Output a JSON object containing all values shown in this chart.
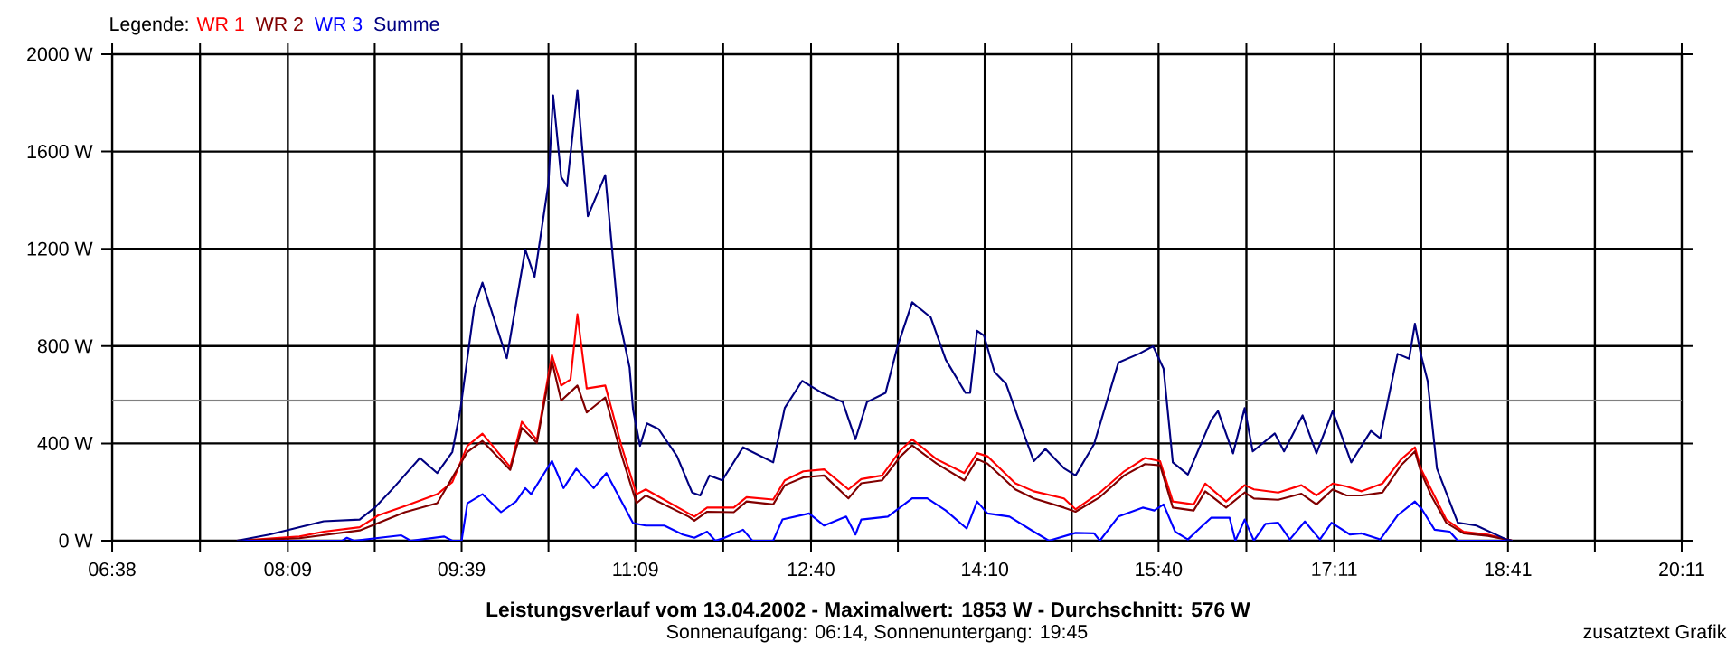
{
  "chart_data": {
    "type": "line",
    "title": "Leistungsverlauf vom 13.04.2002 - Maximalwert: 1853 W - Durchschnitt: 576 W",
    "subtitle": "Sonnenaufgang: 06:14, Sonnenuntergang: 19:45",
    "legend_title": "Legende:",
    "annotations": [
      "zusatztext Grafik"
    ],
    "legend": "top left",
    "grid": true,
    "marker": "none",
    "xlim": [
      6.6333,
      20.1833
    ],
    "xticks": [
      {
        "value": 6.6333,
        "label": "06:38"
      },
      {
        "value": 7.3917,
        "label": null
      },
      {
        "value": 8.15,
        "label": "08:09"
      },
      {
        "value": 8.9,
        "label": null
      },
      {
        "value": 9.65,
        "label": "09:39"
      },
      {
        "value": 10.4,
        "label": null
      },
      {
        "value": 11.15,
        "label": "11:09"
      },
      {
        "value": 11.9083,
        "label": null
      },
      {
        "value": 12.6667,
        "label": "12:40"
      },
      {
        "value": 13.4167,
        "label": null
      },
      {
        "value": 14.1667,
        "label": "14:10"
      },
      {
        "value": 14.9167,
        "label": null
      },
      {
        "value": 15.6667,
        "label": "15:40"
      },
      {
        "value": 16.425,
        "label": null
      },
      {
        "value": 17.1833,
        "label": "17:11"
      },
      {
        "value": 17.9333,
        "label": null
      },
      {
        "value": 18.6833,
        "label": "18:41"
      },
      {
        "value": 19.4333,
        "label": null
      },
      {
        "value": 20.1833,
        "label": "20:11"
      }
    ],
    "ylim": [
      0,
      2000
    ],
    "yticks": [
      {
        "value": 0,
        "label": "0 W"
      },
      {
        "value": 400,
        "label": "400 W"
      },
      {
        "value": 800,
        "label": "800 W"
      },
      {
        "value": 1200,
        "label": "1200 W"
      },
      {
        "value": 1600,
        "label": "1600 W"
      },
      {
        "value": 2000,
        "label": "2000 W"
      }
    ],
    "ref_lines": [
      {
        "axis": "y",
        "value": 576,
        "color": "#808080"
      }
    ],
    "series": [
      {
        "name": "WR 1",
        "color": "#ff0000",
        "x": [
          7.71,
          8.25,
          8.46,
          8.77,
          8.93,
          9.16,
          9.44,
          9.57,
          9.7,
          9.83,
          10.07,
          10.17,
          10.3,
          10.43,
          10.51,
          10.59,
          10.65,
          10.73,
          10.89,
          11.03,
          11.16,
          11.24,
          11.61,
          11.66,
          11.77,
          12.0,
          12.11,
          12.34,
          12.44,
          12.6,
          12.78,
          12.99,
          13.1,
          13.28,
          13.44,
          13.54,
          13.75,
          13.99,
          14.1,
          14.19,
          14.43,
          14.59,
          14.85,
          14.95,
          15.16,
          15.37,
          15.55,
          15.68,
          15.79,
          15.97,
          16.07,
          16.25,
          16.41,
          16.49,
          16.7,
          16.9,
          17.03,
          17.17,
          17.29,
          17.42,
          17.6,
          17.76,
          17.88,
          17.93,
          18.02,
          18.15,
          18.3,
          18.51,
          18.72
        ],
        "values": [
          0,
          17,
          37,
          55,
          104,
          142,
          191,
          241,
          390,
          440,
          303,
          489,
          415,
          763,
          638,
          663,
          931,
          626,
          638,
          390,
          191,
          211,
          112,
          99,
          136,
          136,
          179,
          169,
          248,
          285,
          293,
          211,
          253,
          268,
          372,
          417,
          335,
          278,
          360,
          347,
          236,
          203,
          174,
          129,
          198,
          285,
          340,
          327,
          161,
          149,
          235,
          161,
          228,
          211,
          198,
          228,
          186,
          235,
          223,
          203,
          235,
          334,
          384,
          297,
          211,
          87,
          37,
          25,
          0
        ]
      },
      {
        "name": "WR 2",
        "color": "#800000",
        "x": [
          7.71,
          8.25,
          8.77,
          9.16,
          9.44,
          9.7,
          9.83,
          10.07,
          10.17,
          10.3,
          10.43,
          10.51,
          10.65,
          10.73,
          10.89,
          11.03,
          11.16,
          11.24,
          11.61,
          11.66,
          11.77,
          12.0,
          12.11,
          12.34,
          12.44,
          12.6,
          12.78,
          12.99,
          13.1,
          13.28,
          13.44,
          13.54,
          13.75,
          13.99,
          14.1,
          14.19,
          14.43,
          14.59,
          14.85,
          14.95,
          15.16,
          15.37,
          15.55,
          15.68,
          15.79,
          15.97,
          16.07,
          16.25,
          16.41,
          16.49,
          16.7,
          16.9,
          17.03,
          17.17,
          17.29,
          17.42,
          17.6,
          17.76,
          17.88,
          17.93,
          18.02,
          18.15,
          18.3,
          18.51,
          18.72
        ],
        "values": [
          0,
          10,
          42,
          117,
          154,
          365,
          410,
          291,
          464,
          402,
          738,
          576,
          638,
          527,
          589,
          353,
          154,
          186,
          99,
          82,
          119,
          117,
          161,
          149,
          228,
          260,
          268,
          174,
          236,
          248,
          347,
          392,
          317,
          248,
          335,
          317,
          211,
          174,
          136,
          119,
          179,
          268,
          315,
          310,
          136,
          124,
          203,
          136,
          198,
          173,
          168,
          193,
          149,
          211,
          186,
          186,
          198,
          310,
          367,
          285,
          186,
          74,
          30,
          20,
          0
        ]
      },
      {
        "name": "WR 3",
        "color": "#0000ff",
        "x": [
          7.71,
          8.62,
          8.66,
          8.72,
          9.13,
          9.21,
          9.5,
          9.57,
          9.65,
          9.7,
          9.83,
          9.99,
          10.12,
          10.2,
          10.25,
          10.43,
          10.53,
          10.64,
          10.79,
          10.9,
          11.13,
          11.24,
          11.4,
          11.56,
          11.66,
          11.77,
          11.84,
          11.92,
          12.08,
          12.16,
          12.34,
          12.42,
          12.65,
          12.78,
          12.97,
          13.05,
          13.1,
          13.33,
          13.54,
          13.67,
          13.83,
          14.01,
          14.1,
          14.19,
          14.38,
          14.59,
          14.72,
          14.95,
          15.11,
          15.16,
          15.32,
          15.53,
          15.63,
          15.71,
          15.81,
          15.92,
          16.02,
          16.12,
          16.28,
          16.33,
          16.41,
          16.49,
          16.59,
          16.7,
          16.8,
          16.93,
          17.06,
          17.16,
          17.32,
          17.42,
          17.58,
          17.73,
          17.88,
          17.94,
          18.05,
          18.18,
          18.25,
          18.72
        ],
        "values": [
          0,
          0,
          12,
          0,
          22,
          0,
          17,
          0,
          0,
          154,
          191,
          117,
          161,
          216,
          191,
          328,
          216,
          296,
          216,
          278,
          72,
          62,
          62,
          25,
          12,
          37,
          0,
          12,
          45,
          0,
          0,
          87,
          112,
          62,
          99,
          25,
          87,
          99,
          174,
          174,
          124,
          50,
          161,
          112,
          99,
          37,
          0,
          32,
          30,
          0,
          99,
          136,
          124,
          149,
          37,
          5,
          50,
          94,
          94,
          0,
          87,
          0,
          69,
          74,
          5,
          79,
          5,
          74,
          25,
          30,
          5,
          104,
          161,
          129,
          45,
          37,
          0,
          0
        ]
      },
      {
        "name": "Summe",
        "color": "#000080",
        "x": [
          7.71,
          7.99,
          8.46,
          8.77,
          8.91,
          9.06,
          9.29,
          9.44,
          9.57,
          9.64,
          9.76,
          9.83,
          10.04,
          10.2,
          10.28,
          10.4,
          10.44,
          10.51,
          10.56,
          10.65,
          10.74,
          10.89,
          11.0,
          11.1,
          11.13,
          11.19,
          11.25,
          11.35,
          11.51,
          11.64,
          11.71,
          11.79,
          11.9,
          12.08,
          12.34,
          12.44,
          12.59,
          12.76,
          12.94,
          13.05,
          13.15,
          13.31,
          13.41,
          13.54,
          13.7,
          13.83,
          14.0,
          14.04,
          14.1,
          14.16,
          14.25,
          14.35,
          14.48,
          14.59,
          14.69,
          14.85,
          14.95,
          15.11,
          15.32,
          15.5,
          15.62,
          15.71,
          15.79,
          15.92,
          16.12,
          16.18,
          16.31,
          16.41,
          16.48,
          16.67,
          16.75,
          16.91,
          17.03,
          17.17,
          17.33,
          17.5,
          17.58,
          17.73,
          17.83,
          17.88,
          17.93,
          17.99,
          18.07,
          18.25,
          18.41,
          18.67,
          18.72
        ],
        "values": [
          0,
          25,
          80,
          87,
          140,
          216,
          340,
          278,
          365,
          540,
          961,
          1061,
          750,
          1197,
          1085,
          1470,
          1831,
          1495,
          1458,
          1853,
          1334,
          1503,
          936,
          713,
          539,
          390,
          482,
          459,
          347,
          198,
          186,
          268,
          248,
          384,
          322,
          546,
          657,
          608,
          570,
          417,
          570,
          608,
          794,
          980,
          918,
          744,
          608,
          608,
          863,
          843,
          694,
          645,
          471,
          327,
          377,
          298,
          268,
          397,
          732,
          769,
          799,
          707,
          322,
          272,
          495,
          533,
          359,
          545,
          367,
          441,
          367,
          515,
          359,
          533,
          322,
          451,
          421,
          768,
          748,
          892,
          768,
          656,
          297,
          74,
          62,
          5,
          0
        ]
      }
    ]
  }
}
